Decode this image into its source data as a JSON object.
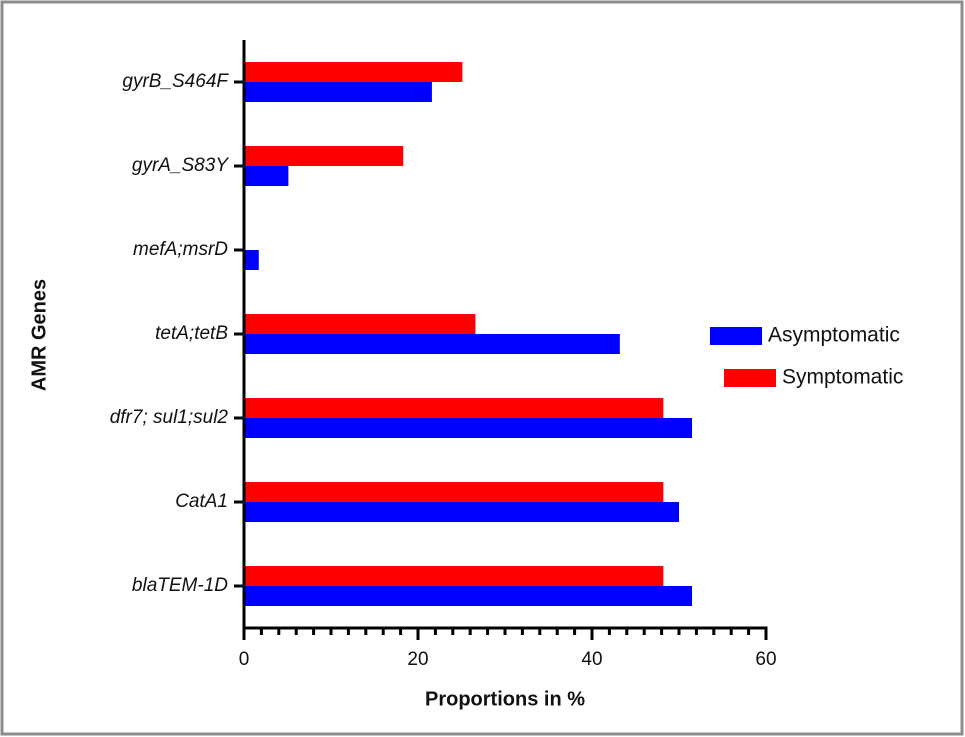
{
  "chart_data": {
    "type": "hbar",
    "xlabel": "Proportions in %",
    "ylabel": "AMR Genes",
    "categories": [
      "gyrB_S464F",
      "gyrA_S83Y",
      "mefA;msrD",
      "tetA;tetB",
      "dfr7; sul1;sul2",
      "CatA1",
      "blaTEM-1D"
    ],
    "series": [
      {
        "name": "Asymptomatic",
        "color": "#0000ff",
        "values": [
          21.6,
          5.1,
          1.7,
          43.2,
          51.5,
          50,
          51.5
        ]
      },
      {
        "name": "Symptomatic",
        "color": "#ff0000",
        "values": [
          25.1,
          18.3,
          0,
          26.6,
          48.2,
          48.2,
          48.2
        ]
      }
    ],
    "xlim": [
      0,
      60
    ],
    "xticks": [
      0,
      20,
      40,
      60
    ],
    "xminorticks": [
      2,
      4,
      6,
      8,
      10,
      12,
      14,
      16,
      18,
      22,
      24,
      26,
      28,
      30,
      32,
      34,
      36,
      38,
      42,
      44,
      46,
      48,
      50,
      52,
      54,
      56,
      58
    ],
    "legend": "right"
  }
}
